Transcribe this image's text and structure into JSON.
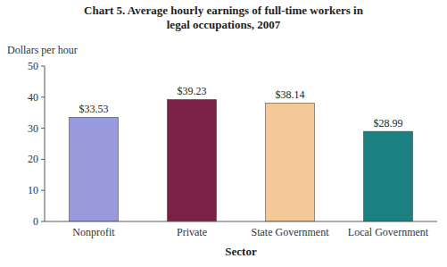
{
  "chart_data": {
    "type": "bar",
    "title": "Chart 5. Average hourly earnings of full-time workers in\nlegal occupations, 2007",
    "ylabel": "Dollars per hour",
    "xlabel": "Sector",
    "categories": [
      "Nonprofit",
      "Private",
      "State Government",
      "Local Government"
    ],
    "values": [
      33.53,
      39.23,
      38.14,
      28.99
    ],
    "value_labels": [
      "$33.53",
      "$39.23",
      "$38.14",
      "$28.99"
    ],
    "colors": [
      "#9999DD",
      "#7B2145",
      "#F5C897",
      "#1A8080"
    ],
    "ylim": [
      0,
      50
    ],
    "yticks": [
      0,
      10,
      20,
      30,
      40,
      50
    ],
    "data_labels": true,
    "grid": false
  }
}
